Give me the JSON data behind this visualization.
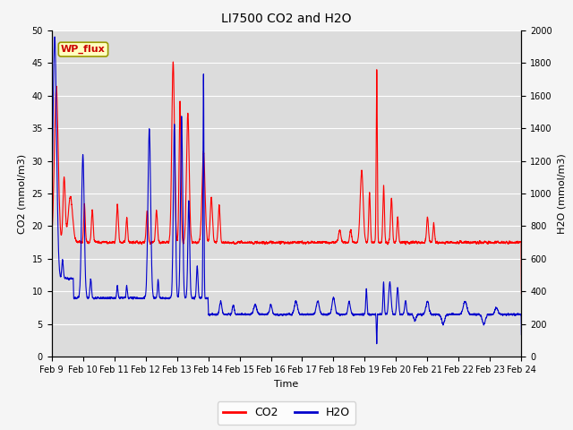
{
  "title": "LI7500 CO2 and H2O",
  "xlabel": "Time",
  "ylabel_left": "CO2 (mmol/m3)",
  "ylabel_right": "H2O (mmol/m3)",
  "xlim_days": [
    0,
    15
  ],
  "ylim_left": [
    0,
    50
  ],
  "ylim_right": [
    0,
    2000
  ],
  "yticks_left": [
    0,
    5,
    10,
    15,
    20,
    25,
    30,
    35,
    40,
    45,
    50
  ],
  "yticks_right": [
    0,
    200,
    400,
    600,
    800,
    1000,
    1200,
    1400,
    1600,
    1800,
    2000
  ],
  "xtick_labels": [
    "Feb 9",
    "Feb 10",
    "Feb 11",
    "Feb 12",
    "Feb 13",
    "Feb 14",
    "Feb 15",
    "Feb 16",
    "Feb 17",
    "Feb 18",
    "Feb 19",
    "Feb 20",
    "Feb 21",
    "Feb 22",
    "Feb 23",
    "Feb 24"
  ],
  "plot_bg_color": "#dcdcdc",
  "fig_bg_color": "#f5f5f5",
  "grid_color": "#ffffff",
  "co2_color": "#ff0000",
  "h2o_color": "#0000cc",
  "line_width": 0.8,
  "annotation_text": "WP_flux",
  "legend_co2": "CO2",
  "legend_h2o": "H2O",
  "title_fontsize": 10,
  "label_fontsize": 8,
  "tick_fontsize": 7,
  "annot_fontsize": 8
}
